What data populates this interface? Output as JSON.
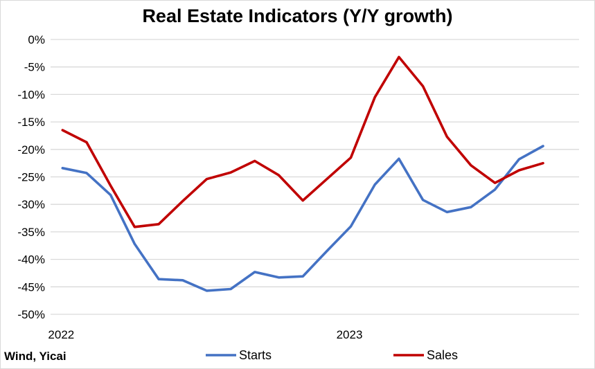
{
  "chart_data": {
    "type": "line",
    "title": "Real Estate Indicators (Y/Y growth)",
    "source": "Wind, Yicai",
    "xlabel": "",
    "ylabel": "",
    "x_tick_labels": [
      "2022",
      "2023"
    ],
    "ylim": [
      -50,
      0
    ],
    "y_ticks": [
      0,
      -5,
      -10,
      -15,
      -20,
      -25,
      -30,
      -35,
      -40,
      -45,
      -50
    ],
    "y_tick_labels": [
      "0%",
      "-5%",
      "-10%",
      "-15%",
      "-20%",
      "-25%",
      "-30%",
      "-35%",
      "-40%",
      "-45%",
      "-50%"
    ],
    "grid": true,
    "legend_position": "bottom",
    "x": [
      "2022-01",
      "2022-02",
      "2022-03",
      "2022-04",
      "2022-05",
      "2022-06",
      "2022-07",
      "2022-08",
      "2022-09",
      "2022-10",
      "2022-11",
      "2022-12",
      "2023-01",
      "2023-02",
      "2023-03",
      "2023-04",
      "2023-05",
      "2023-06",
      "2023-07",
      "2023-08",
      "2023-09",
      "2023-10"
    ],
    "series": [
      {
        "name": "Starts",
        "color": "#4472C4",
        "values": [
          -23.4,
          -24.3,
          -28.3,
          -37.2,
          -43.6,
          -43.8,
          -45.7,
          -45.4,
          -42.3,
          -43.3,
          -43.1,
          -38.5,
          -34.0,
          -26.4,
          -21.7,
          -29.2,
          -31.4,
          -30.5,
          -27.3,
          -21.8,
          -19.4,
          null
        ]
      },
      {
        "name": "Sales",
        "color": "#C00000",
        "values": [
          -16.5,
          -18.7,
          -26.6,
          -34.1,
          -33.6,
          -29.4,
          -25.4,
          -24.2,
          -22.1,
          -24.7,
          -29.3,
          -25.4,
          -21.5,
          -10.5,
          -3.2,
          -8.5,
          -17.7,
          -22.9,
          -26.1,
          -23.8,
          -22.5,
          null
        ]
      }
    ]
  }
}
